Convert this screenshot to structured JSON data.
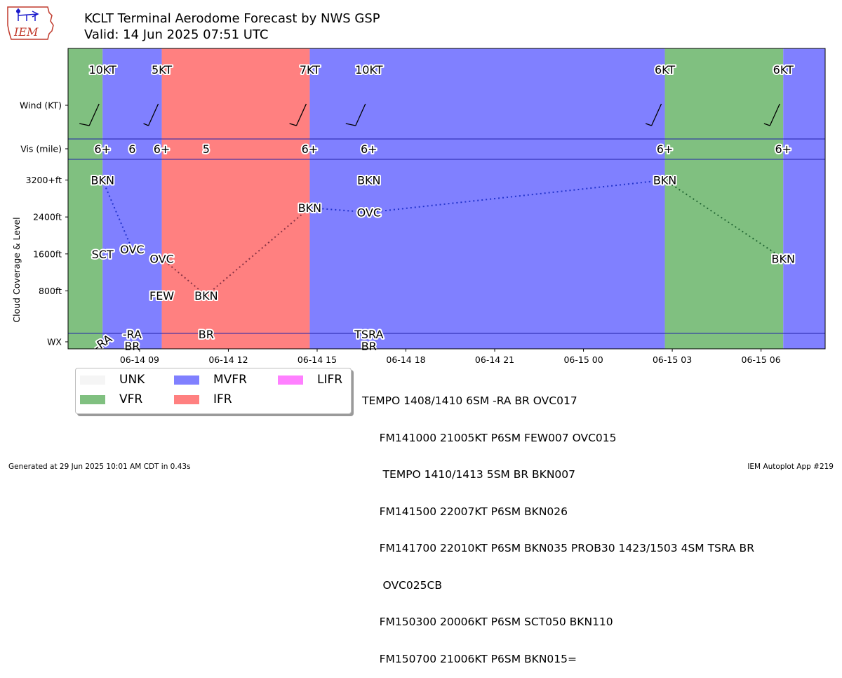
{
  "header": {
    "title": "KCLT Terminal Aerodome Forecast by NWS GSP",
    "subtitle": "Valid: 14 Jun 2025 07:51 UTC",
    "logo_text": "IEM"
  },
  "footer": {
    "left": "Generated at 29 Jun 2025 10:01 AM CDT in 0.43s",
    "right": "IEM Autoplot App #219"
  },
  "legend": {
    "items": [
      {
        "label": "UNK",
        "color": "#f5f5f5"
      },
      {
        "label": "VFR",
        "color": "#80c080"
      },
      {
        "label": "MVFR",
        "color": "#8080ff"
      },
      {
        "label": "IFR",
        "color": "#ff8080"
      },
      {
        "label": "LIFR",
        "color": "#ff80ff"
      }
    ]
  },
  "taf_text": [
    "TEMPO 1408/1410 6SM -RA BR OVC017",
    "     FM141000 21005KT P6SM FEW007 OVC015",
    "      TEMPO 1410/1413 5SM BR BKN007",
    "     FM141500 22007KT P6SM BKN026",
    "     FM141700 22010KT P6SM BKN035 PROB30 1423/1503 4SM TSRA BR",
    "      OVC025CB",
    "     FM150300 20006KT P6SM SCT050 BKN110",
    "     FM150700 21006KT P6SM BKN015="
  ],
  "chart_data": {
    "type": "timeline",
    "ylabel": "Cloud Coverage & Level",
    "row_labels": {
      "wind": "Wind (KT)",
      "vis": "Vis (mile)",
      "wx": "WX"
    },
    "yticks": [
      {
        "value": 3200,
        "label": "3200+ft"
      },
      {
        "value": 2400,
        "label": "2400ft"
      },
      {
        "value": 1600,
        "label": "1600ft"
      },
      {
        "value": 800,
        "label": "800ft"
      }
    ],
    "ylim_ft": [
      -120,
      3420
    ],
    "x_start": "2025-06-14 06:35",
    "x_end": "2025-06-15 08:10",
    "xticks": [
      {
        "t": "2025-06-14 09:00",
        "label": "06-14 09"
      },
      {
        "t": "2025-06-14 12:00",
        "label": "06-14 12"
      },
      {
        "t": "2025-06-14 15:00",
        "label": "06-14 15"
      },
      {
        "t": "2025-06-14 18:00",
        "label": "06-14 18"
      },
      {
        "t": "2025-06-14 21:00",
        "label": "06-14 21"
      },
      {
        "t": "2025-06-15 00:00",
        "label": "06-15 00"
      },
      {
        "t": "2025-06-15 03:00",
        "label": "06-15 03"
      },
      {
        "t": "2025-06-15 06:00",
        "label": "06-15 06"
      }
    ],
    "category_spans": [
      {
        "start": "2025-06-14 06:35",
        "end": "2025-06-14 07:45",
        "category": "VFR"
      },
      {
        "start": "2025-06-14 07:45",
        "end": "2025-06-14 09:45",
        "category": "MVFR"
      },
      {
        "start": "2025-06-14 09:45",
        "end": "2025-06-14 14:45",
        "category": "IFR"
      },
      {
        "start": "2025-06-14 14:45",
        "end": "2025-06-15 02:45",
        "category": "MVFR"
      },
      {
        "start": "2025-06-15 02:45",
        "end": "2025-06-15 06:45",
        "category": "VFR"
      },
      {
        "start": "2025-06-15 06:45",
        "end": "2025-06-15 08:10",
        "category": "MVFR"
      }
    ],
    "wind": [
      {
        "t": "2025-06-14 07:45",
        "label": "10KT",
        "speed": 10
      },
      {
        "t": "2025-06-14 09:45",
        "label": "5KT",
        "speed": 5
      },
      {
        "t": "2025-06-14 14:45",
        "label": "7KT",
        "speed": 7
      },
      {
        "t": "2025-06-14 16:45",
        "label": "10KT",
        "speed": 10
      },
      {
        "t": "2025-06-15 02:45",
        "label": "6KT",
        "speed": 6
      },
      {
        "t": "2025-06-15 06:45",
        "label": "6KT",
        "speed": 6
      }
    ],
    "visibility": [
      {
        "t": "2025-06-14 07:45",
        "label": "6+"
      },
      {
        "t": "2025-06-14 08:45",
        "label": "6"
      },
      {
        "t": "2025-06-14 09:45",
        "label": "6+"
      },
      {
        "t": "2025-06-14 11:15",
        "label": "5"
      },
      {
        "t": "2025-06-14 14:45",
        "label": "6+"
      },
      {
        "t": "2025-06-14 16:45",
        "label": "6+"
      },
      {
        "t": "2025-06-15 02:45",
        "label": "6+"
      },
      {
        "t": "2025-06-15 06:45",
        "label": "6+"
      }
    ],
    "clouds": [
      {
        "t": "2025-06-14 07:45",
        "cover": "BKN",
        "level": 3200
      },
      {
        "t": "2025-06-14 07:45",
        "cover": "SCT",
        "level": 1600
      },
      {
        "t": "2025-06-14 08:45",
        "cover": "OVC",
        "level": 1700
      },
      {
        "t": "2025-06-14 09:45",
        "cover": "OVC",
        "level": 1500
      },
      {
        "t": "2025-06-14 09:45",
        "cover": "FEW",
        "level": 700
      },
      {
        "t": "2025-06-14 11:15",
        "cover": "BKN",
        "level": 700
      },
      {
        "t": "2025-06-14 14:45",
        "cover": "BKN",
        "level": 2600
      },
      {
        "t": "2025-06-14 16:45",
        "cover": "BKN",
        "level": 3200
      },
      {
        "t": "2025-06-14 16:45",
        "cover": "OVC",
        "level": 2500
      },
      {
        "t": "2025-06-15 02:45",
        "cover": "BKN",
        "level": 3200
      },
      {
        "t": "2025-06-15 06:45",
        "cover": "BKN",
        "level": 1500
      }
    ],
    "cloud_lines": [
      {
        "color": "#2233cc",
        "points": [
          [
            "2025-06-14 07:45",
            3200
          ],
          [
            "2025-06-14 08:45",
            1700
          ]
        ]
      },
      {
        "color": "#883344",
        "points": [
          [
            "2025-06-14 09:45",
            1500
          ],
          [
            "2025-06-14 11:15",
            700
          ],
          [
            "2025-06-14 14:45",
            2600
          ]
        ]
      },
      {
        "color": "#2233cc",
        "points": [
          [
            "2025-06-14 14:45",
            2600
          ],
          [
            "2025-06-14 16:45",
            2500
          ],
          [
            "2025-06-15 02:45",
            3200
          ]
        ]
      },
      {
        "color": "#226633",
        "points": [
          [
            "2025-06-15 02:45",
            3200
          ],
          [
            "2025-06-15 06:45",
            1500
          ]
        ]
      }
    ],
    "weather": [
      {
        "t": "2025-06-14 07:45",
        "lines": [
          "-RA"
        ],
        "rotated": true
      },
      {
        "t": "2025-06-14 08:45",
        "lines": [
          "-RA",
          "BR"
        ]
      },
      {
        "t": "2025-06-14 11:15",
        "lines": [
          "BR"
        ]
      },
      {
        "t": "2025-06-14 16:45",
        "lines": [
          "TSRA",
          "BR"
        ]
      }
    ]
  }
}
